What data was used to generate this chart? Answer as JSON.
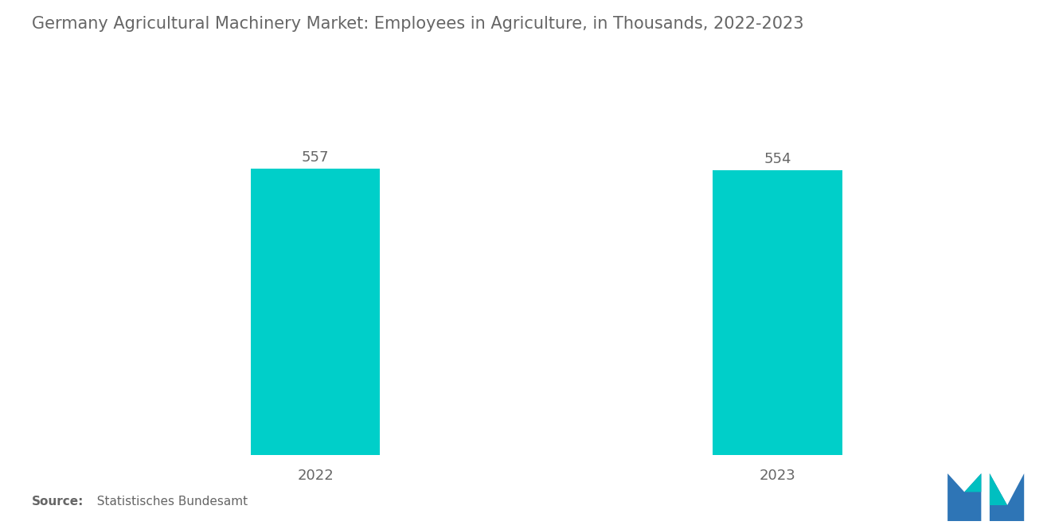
{
  "title": "Germany Agricultural Machinery Market: Employees in Agriculture, in Thousands, 2022-2023",
  "categories": [
    "2022",
    "2023"
  ],
  "values": [
    557,
    554
  ],
  "bar_color": "#00CFC9",
  "background_color": "#ffffff",
  "title_color": "#666666",
  "title_fontsize": 15,
  "value_fontsize": 13,
  "xlabel_fontsize": 13,
  "source_bold": "Source:",
  "source_normal": "  Statistisches Bundesamt",
  "source_fontsize": 11,
  "ylim": [
    0,
    700
  ],
  "bar_width": 0.28,
  "logo_blue": "#2E75B6",
  "logo_teal": "#00BFC0"
}
